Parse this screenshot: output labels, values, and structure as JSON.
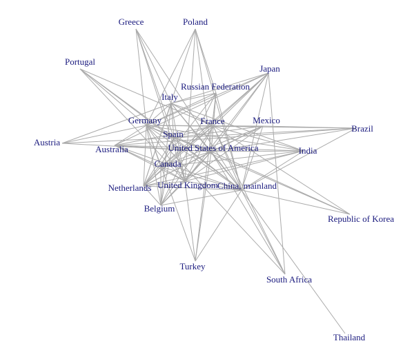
{
  "nodes": [
    {
      "id": "greece",
      "label": "Greece"
    },
    {
      "id": "poland",
      "label": "Poland"
    },
    {
      "id": "portugal",
      "label": "Portugal"
    },
    {
      "id": "japan",
      "label": "Japan"
    },
    {
      "id": "russia",
      "label": "Russian Federation"
    },
    {
      "id": "italy",
      "label": "Italy"
    },
    {
      "id": "germany",
      "label": "Germany"
    },
    {
      "id": "france",
      "label": "France"
    },
    {
      "id": "mexico",
      "label": "Mexico"
    },
    {
      "id": "brazil",
      "label": "Brazil"
    },
    {
      "id": "spain",
      "label": "Spain"
    },
    {
      "id": "austria",
      "label": "Austria"
    },
    {
      "id": "australia",
      "label": "Australia"
    },
    {
      "id": "usa",
      "label": "United States of America"
    },
    {
      "id": "india",
      "label": "India"
    },
    {
      "id": "canada",
      "label": "Canada"
    },
    {
      "id": "netherlands",
      "label": "Netherlands"
    },
    {
      "id": "uk",
      "label": "United Kingdom"
    },
    {
      "id": "china",
      "label": "China, mainland"
    },
    {
      "id": "belgium",
      "label": "Belgium"
    },
    {
      "id": "korea",
      "label": "Republic of Korea"
    },
    {
      "id": "turkey",
      "label": "Turkey"
    },
    {
      "id": "southafrica",
      "label": "South Africa"
    },
    {
      "id": "thailand",
      "label": "Thailand"
    }
  ],
  "edges": [
    [
      "greece",
      "germany"
    ],
    [
      "greece",
      "uk"
    ],
    [
      "greece",
      "china"
    ],
    [
      "greece",
      "italy"
    ],
    [
      "greece",
      "spain"
    ],
    [
      "poland",
      "germany"
    ],
    [
      "poland",
      "uk"
    ],
    [
      "poland",
      "china"
    ],
    [
      "poland",
      "russia"
    ],
    [
      "poland",
      "netherlands"
    ],
    [
      "poland",
      "usa"
    ],
    [
      "portugal",
      "spain"
    ],
    [
      "portugal",
      "germany"
    ],
    [
      "portugal",
      "france"
    ],
    [
      "portugal",
      "uk"
    ],
    [
      "portugal",
      "china"
    ],
    [
      "japan",
      "usa"
    ],
    [
      "japan",
      "china"
    ],
    [
      "japan",
      "germany"
    ],
    [
      "japan",
      "france"
    ],
    [
      "japan",
      "uk"
    ],
    [
      "japan",
      "netherlands"
    ],
    [
      "japan",
      "canada"
    ],
    [
      "japan",
      "australia"
    ],
    [
      "japan",
      "south africa"
    ],
    [
      "japan",
      "italy"
    ],
    [
      "russia",
      "germany"
    ],
    [
      "russia",
      "china"
    ],
    [
      "russia",
      "italy"
    ],
    [
      "russia",
      "netherlands"
    ],
    [
      "russia",
      "belgium"
    ],
    [
      "russia",
      "usa"
    ],
    [
      "russia",
      "france"
    ],
    [
      "russia",
      "turkey"
    ],
    [
      "italy",
      "germany"
    ],
    [
      "italy",
      "france"
    ],
    [
      "italy",
      "spain"
    ],
    [
      "italy",
      "usa"
    ],
    [
      "italy",
      "uk"
    ],
    [
      "italy",
      "china"
    ],
    [
      "italy",
      "india"
    ],
    [
      "italy",
      "belgium"
    ],
    [
      "italy",
      "netherlands"
    ],
    [
      "italy",
      "austria"
    ],
    [
      "germany",
      "france"
    ],
    [
      "germany",
      "austria"
    ],
    [
      "germany",
      "usa"
    ],
    [
      "germany",
      "china"
    ],
    [
      "germany",
      "uk"
    ],
    [
      "germany",
      "netherlands"
    ],
    [
      "germany",
      "belgium"
    ],
    [
      "germany",
      "spain"
    ],
    [
      "germany",
      "canada"
    ],
    [
      "germany",
      "india"
    ],
    [
      "germany",
      "mexico"
    ],
    [
      "germany",
      "brazil"
    ],
    [
      "germany",
      "australia"
    ],
    [
      "france",
      "usa"
    ],
    [
      "france",
      "uk"
    ],
    [
      "france",
      "china"
    ],
    [
      "france",
      "spain"
    ],
    [
      "france",
      "belgium"
    ],
    [
      "france",
      "netherlands"
    ],
    [
      "france",
      "canada"
    ],
    [
      "france",
      "india"
    ],
    [
      "france",
      "australia"
    ],
    [
      "france",
      "mexico"
    ],
    [
      "france",
      "korea"
    ],
    [
      "france",
      "southafrica"
    ],
    [
      "mexico",
      "usa"
    ],
    [
      "mexico",
      "brazil"
    ],
    [
      "mexico",
      "canada"
    ],
    [
      "mexico",
      "spain"
    ],
    [
      "mexico",
      "china"
    ],
    [
      "mexico",
      "netherlands"
    ],
    [
      "mexico",
      "uk"
    ],
    [
      "brazil",
      "usa"
    ],
    [
      "brazil",
      "china"
    ],
    [
      "brazil",
      "spain"
    ],
    [
      "brazil",
      "australia"
    ],
    [
      "spain",
      "usa"
    ],
    [
      "spain",
      "uk"
    ],
    [
      "spain",
      "china"
    ],
    [
      "spain",
      "netherlands"
    ],
    [
      "spain",
      "belgium"
    ],
    [
      "spain",
      "canada"
    ],
    [
      "austria",
      "usa"
    ],
    [
      "austria",
      "spain"
    ],
    [
      "australia",
      "usa"
    ],
    [
      "australia",
      "china"
    ],
    [
      "australia",
      "uk"
    ],
    [
      "australia",
      "india"
    ],
    [
      "australia",
      "canada"
    ],
    [
      "usa",
      "canada"
    ],
    [
      "usa",
      "uk"
    ],
    [
      "usa",
      "china"
    ],
    [
      "usa",
      "india"
    ],
    [
      "usa",
      "netherlands"
    ],
    [
      "usa",
      "belgium"
    ],
    [
      "usa",
      "korea"
    ],
    [
      "usa",
      "turkey"
    ],
    [
      "india",
      "china"
    ],
    [
      "india",
      "uk"
    ],
    [
      "india",
      "canada"
    ],
    [
      "india",
      "netherlands"
    ],
    [
      "canada",
      "uk"
    ],
    [
      "canada",
      "china"
    ],
    [
      "canada",
      "netherlands"
    ],
    [
      "canada",
      "belgium"
    ],
    [
      "netherlands",
      "uk"
    ],
    [
      "netherlands",
      "china"
    ],
    [
      "netherlands",
      "belgium"
    ],
    [
      "uk",
      "china"
    ],
    [
      "uk",
      "belgium"
    ],
    [
      "uk",
      "turkey"
    ],
    [
      "china",
      "belgium"
    ],
    [
      "china",
      "korea"
    ],
    [
      "china",
      "southafrica"
    ],
    [
      "china",
      "thailand"
    ],
    [
      "china",
      "turkey"
    ],
    [
      "korea",
      "germany"
    ],
    [
      "southafrica",
      "usa"
    ],
    [
      "southafrica",
      "germany"
    ],
    [
      "turkey",
      "germany"
    ]
  ]
}
